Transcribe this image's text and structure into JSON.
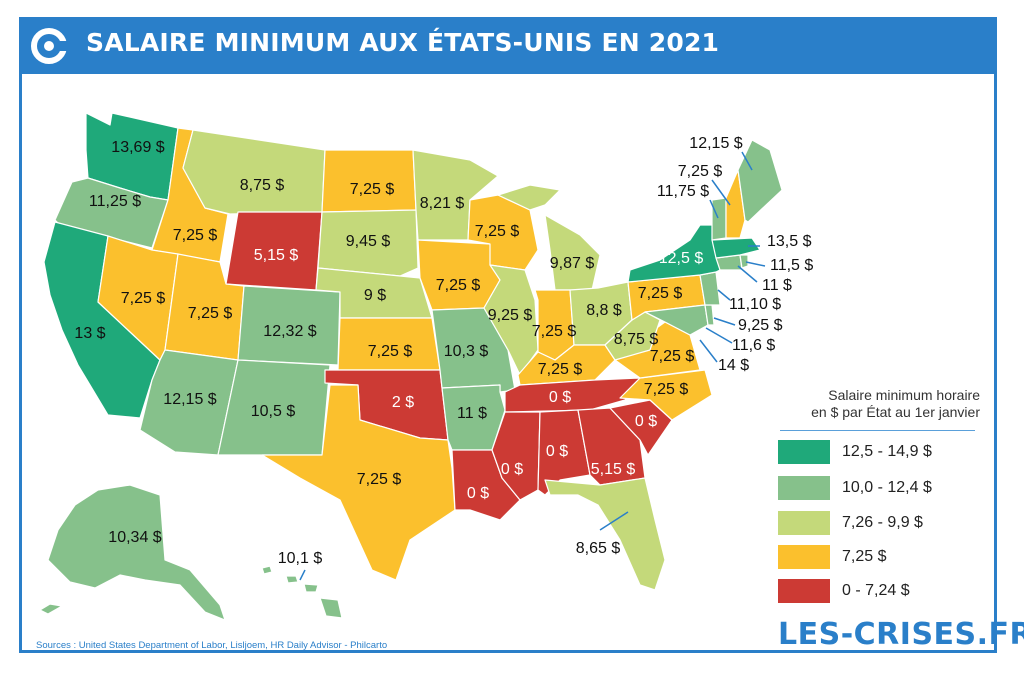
{
  "header": {
    "title": "SALAIRE MINIMUM AUX ÉTATS-UNIS EN 2021"
  },
  "colors": {
    "frame": "#2a7fc9",
    "cat_12_5_14_9": "#1fa97a",
    "cat_10_0_12_4": "#86c18b",
    "cat_7_26_9_9": "#c4d97a",
    "cat_7_25": "#fbc02d",
    "cat_0_7_24": "#cc3a34"
  },
  "legend": {
    "title_line1": "Salaire minimum horaire",
    "title_line2": "en $ par État au 1er janvier",
    "items": [
      {
        "label": "12,5 - 14,9 $",
        "color": "#1fa97a"
      },
      {
        "label": "10,0 - 12,4 $",
        "color": "#86c18b"
      },
      {
        "label": "7,26 - 9,9 $",
        "color": "#c4d97a"
      },
      {
        "label": "7,25 $",
        "color": "#fbc02d"
      },
      {
        "label": "0 - 7,24 $",
        "color": "#cc3a34"
      }
    ]
  },
  "labels": {
    "wa": "13,69 $",
    "or": "11,25 $",
    "ca": "13 $",
    "id": "7,25 $",
    "nv": "7,25 $",
    "mt": "8,75 $",
    "wy": "5,15 $",
    "ut": "7,25 $",
    "co": "12,32 $",
    "az": "12,15 $",
    "nm": "10,5 $",
    "nd": "7,25 $",
    "sd": "9,45 $",
    "ne": "9 $",
    "ks": "7,25 $",
    "ok": "2 $",
    "tx": "7,25 $",
    "mn": "8,21 $",
    "ia": "7,25 $",
    "mo": "10,3 $",
    "ar": "11 $",
    "la": "0 $",
    "wi": "7,25 $",
    "il": "9,25 $",
    "mi": "9,87 $",
    "in": "7,25 $",
    "oh": "8,8 $",
    "ky": "7,25 $",
    "tn": "0 $",
    "ms": "0 $",
    "al": "0 $",
    "ga": "5,15 $",
    "fl": "8,65 $",
    "sc": "0 $",
    "nc": "7,25 $",
    "va": "7,25 $",
    "wv": "8,75 $",
    "pa": "7,25 $",
    "ny": "12,5 $",
    "me": "12,15 $",
    "nh": "7,25 $",
    "vt": "11,75 $",
    "ma": "13,5 $",
    "ri": "11,5 $",
    "ct": "11 $",
    "nj": "11,10 $",
    "de": "9,25 $",
    "md": "11,6 $",
    "dc": "14 $",
    "ak": "10,34 $",
    "hi": "10,1 $"
  },
  "sources": "Sources : United States Department of Labor, Lisljoem, HR Daily Advisor - Philcarto",
  "brand": "LES-CRISES.FR"
}
